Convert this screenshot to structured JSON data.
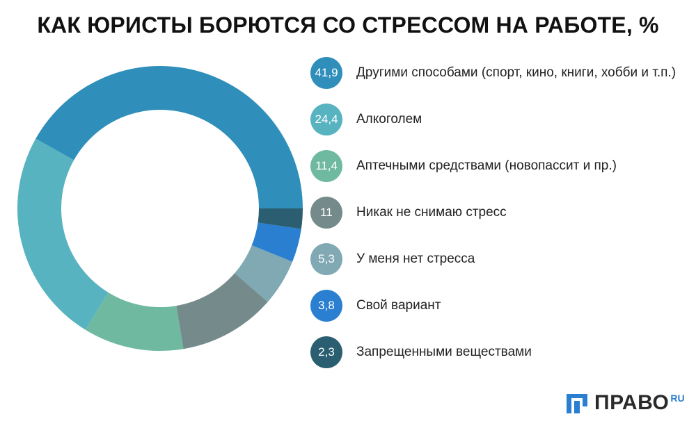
{
  "header": {
    "title": "КАК ЮРИСТЫ БОРЮТСЯ СО СТРЕССОМ НА РАБОТЕ, %"
  },
  "chart_data": {
    "type": "pie",
    "title": "КАК ЮРИСТЫ БОРЮТСЯ СО СТРЕССОМ НА РАБОТЕ, %",
    "style": "donut",
    "slices": [
      {
        "label": "Другими способами (спорт, кино, книги, хобби и т.п.)",
        "value": 41.9,
        "value_label": "41,9",
        "color": "#2f8fba"
      },
      {
        "label": "Алкоголем",
        "value": 24.4,
        "value_label": "24,4",
        "color": "#58b3c0"
      },
      {
        "label": "Аптечными средствами (новопассит и пр.)",
        "value": 11.4,
        "value_label": "11,4",
        "color": "#70b9a1"
      },
      {
        "label": "Никак не снимаю стресс",
        "value": 11,
        "value_label": "11",
        "color": "#758b8b"
      },
      {
        "label": "У меня нет стресса",
        "value": 5.3,
        "value_label": "5,3",
        "color": "#80a9b3"
      },
      {
        "label": "Свой вариант",
        "value": 3.8,
        "value_label": "3,8",
        "color": "#2a7fd0"
      },
      {
        "label": "Запрещенными веществами",
        "value": 2.3,
        "value_label": "2,3",
        "color": "#2a5e70"
      }
    ]
  },
  "brand": {
    "name": "ПРАВО",
    "tld": "RU",
    "logo_icon": "pravo-logo-icon",
    "logo_color": "#2a7fd0"
  }
}
